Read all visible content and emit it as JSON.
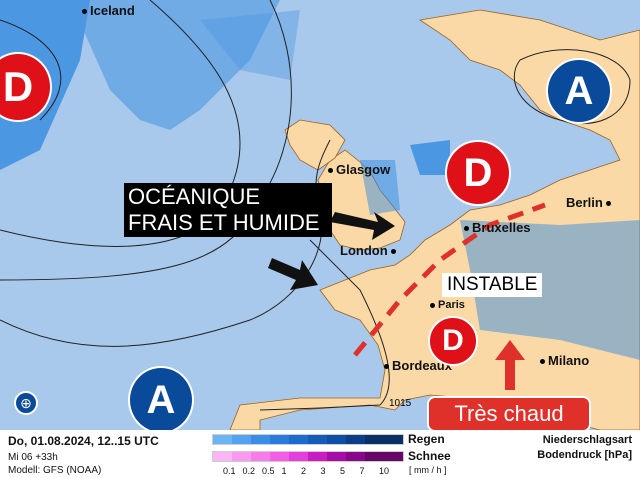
{
  "map": {
    "cities": [
      "Iceland",
      "Glasgow",
      "London",
      "Bruxelles",
      "Paris",
      "Berlin",
      "Bordeaux",
      "Milano"
    ],
    "isobar_label": "1015",
    "pressure_centers": [
      {
        "type": "D",
        "label": "D"
      },
      {
        "type": "A",
        "label": "A"
      },
      {
        "type": "D",
        "label": "D"
      },
      {
        "type": "D",
        "label": "D"
      },
      {
        "type": "A",
        "label": "A"
      }
    ],
    "annotations": {
      "oceanic_line1": "OCÉANIQUE",
      "oceanic_line2": "FRAIS ET HUMIDE",
      "instable": "INSTABLE",
      "tres_chaud": "Très chaud"
    },
    "colors": {
      "sea": "#a8c8ec",
      "land": "#fad9a6",
      "high": "#0a4a9a",
      "low": "#e01018",
      "rain": "#3a8ee0"
    }
  },
  "legend": {
    "date": "Do, 01.08.2024, 12..15 UTC",
    "run": "Mi 06 +33h",
    "model": "Modell: GFS (NOAA)",
    "rain_label": "Regen",
    "snow_label": "Schnee",
    "unit": "[ mm / h ]",
    "ticks": [
      "0.1",
      "0.2",
      "0.5",
      "1",
      "2",
      "3",
      "5",
      "7",
      "10"
    ],
    "rain_colors": [
      "#6ab4f6",
      "#52a2f0",
      "#3a8ee6",
      "#2a7cdc",
      "#1c6ccc",
      "#145cb8",
      "#0e4ea4",
      "#0a3e88",
      "#082f68"
    ],
    "snow_colors": [
      "#fbb6f3",
      "#f99af0",
      "#f67cea",
      "#f25ee4",
      "#e43edc",
      "#c81cc4",
      "#a80ca8",
      "#88088a",
      "#680668"
    ],
    "title1": "Niederschlagsart",
    "title2": "Bodendruck [hPa]"
  }
}
